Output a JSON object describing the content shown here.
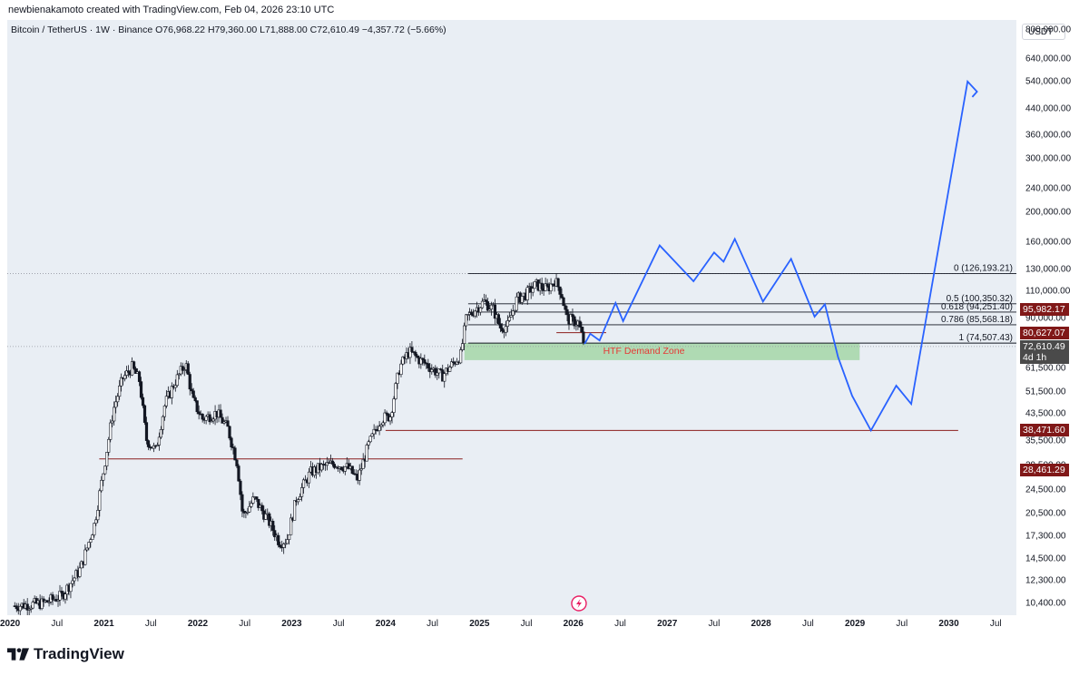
{
  "header": {
    "attribution": "newbienakamoto created with TradingView.com, Feb 04, 2026 23:10 UTC"
  },
  "legend": {
    "symbol": "Bitcoin / TetherUS · 1W · Binance",
    "open": "O76,968.22",
    "high": "H79,360.00",
    "low": "L71,888.00",
    "close": "C72,610.49",
    "change": "−4,357.72 (−5.66%)"
  },
  "axis": {
    "unit": "USDT"
  },
  "footer": {
    "brand": "TradingView"
  },
  "colors": {
    "plot_bg": "#e9eef4",
    "candle": "#131722",
    "projection": "#2962ff",
    "support_line": "#8b1e1e",
    "demand_zone": "#a5d6a7",
    "demand_zone_text": "#e53935",
    "price_tag_red": "#801818",
    "price_tag_dark": "#4a4a4a"
  },
  "chart_data": {
    "type": "candlestick",
    "symbol": "Bitcoin / TetherUS",
    "interval": "1W",
    "exchange": "Binance",
    "y_scale": "log",
    "ylim": [
      9500,
      860000
    ],
    "y_ticks": [
      "800,000.00",
      "640,000.00",
      "540,000.00",
      "440,000.00",
      "360,000.00",
      "300,000.00",
      "240,000.00",
      "200,000.00",
      "160,000.00",
      "130,000.00",
      "110,000.00",
      "90,000.00",
      "61,500.00",
      "51,500.00",
      "43,500.00",
      "35,500.00",
      "29,500.00",
      "24,500.00",
      "20,500.00",
      "17,300.00",
      "14,500.00",
      "12,300.00",
      "10,400.00"
    ],
    "x_ticks": [
      {
        "label": "2020",
        "year": 2020.0,
        "major": true
      },
      {
        "label": "Jul",
        "year": 2020.5
      },
      {
        "label": "2021",
        "year": 2021.0,
        "major": true
      },
      {
        "label": "Jul",
        "year": 2021.5
      },
      {
        "label": "2022",
        "year": 2022.0,
        "major": true
      },
      {
        "label": "Jul",
        "year": 2022.5
      },
      {
        "label": "2023",
        "year": 2023.0,
        "major": true
      },
      {
        "label": "Jul",
        "year": 2023.5
      },
      {
        "label": "2024",
        "year": 2024.0,
        "major": true
      },
      {
        "label": "Jul",
        "year": 2024.5
      },
      {
        "label": "2025",
        "year": 2025.0,
        "major": true
      },
      {
        "label": "Jul",
        "year": 2025.5
      },
      {
        "label": "2026",
        "year": 2026.0,
        "major": true
      },
      {
        "label": "Jul",
        "year": 2026.5
      },
      {
        "label": "2027",
        "year": 2027.0,
        "major": true
      },
      {
        "label": "Jul",
        "year": 2027.5
      },
      {
        "label": "2028",
        "year": 2028.0,
        "major": true
      },
      {
        "label": "Jul",
        "year": 2028.5
      },
      {
        "label": "2029",
        "year": 2029.0,
        "major": true
      },
      {
        "label": "Jul",
        "year": 2029.5
      },
      {
        "label": "2030",
        "year": 2030.0,
        "major": true
      },
      {
        "label": "Jul",
        "year": 2030.5
      }
    ],
    "price_path": [
      [
        2020.05,
        10200
      ],
      [
        2020.35,
        10400
      ],
      [
        2020.55,
        11000
      ],
      [
        2020.75,
        13500
      ],
      [
        2020.9,
        19000
      ],
      [
        2021.0,
        29000
      ],
      [
        2021.1,
        45000
      ],
      [
        2021.2,
        57000
      ],
      [
        2021.3,
        62000
      ],
      [
        2021.38,
        56000
      ],
      [
        2021.45,
        36000
      ],
      [
        2021.55,
        33000
      ],
      [
        2021.65,
        47000
      ],
      [
        2021.75,
        55000
      ],
      [
        2021.87,
        64000
      ],
      [
        2021.95,
        48000
      ],
      [
        2022.05,
        42000
      ],
      [
        2022.2,
        44000
      ],
      [
        2022.32,
        39000
      ],
      [
        2022.42,
        30000
      ],
      [
        2022.48,
        20000
      ],
      [
        2022.6,
        23000
      ],
      [
        2022.75,
        19500
      ],
      [
        2022.87,
        16500
      ],
      [
        2022.95,
        16800
      ],
      [
        2023.05,
        23000
      ],
      [
        2023.2,
        28000
      ],
      [
        2023.3,
        29000
      ],
      [
        2023.45,
        30000
      ],
      [
        2023.6,
        29000
      ],
      [
        2023.7,
        26500
      ],
      [
        2023.82,
        34500
      ],
      [
        2023.95,
        42000
      ],
      [
        2024.05,
        43000
      ],
      [
        2024.15,
        62000
      ],
      [
        2024.25,
        70000
      ],
      [
        2024.35,
        66000
      ],
      [
        2024.45,
        63000
      ],
      [
        2024.6,
        58000
      ],
      [
        2024.7,
        63000
      ],
      [
        2024.8,
        68000
      ],
      [
        2024.86,
        90000
      ],
      [
        2024.95,
        96000
      ],
      [
        2025.05,
        102000
      ],
      [
        2025.15,
        96000
      ],
      [
        2025.22,
        84000
      ],
      [
        2025.3,
        85000
      ],
      [
        2025.4,
        104000
      ],
      [
        2025.5,
        108000
      ],
      [
        2025.6,
        116000
      ],
      [
        2025.72,
        112000
      ],
      [
        2025.8,
        120000
      ],
      [
        2025.87,
        110000
      ],
      [
        2025.93,
        90000
      ],
      [
        2026.0,
        88000
      ],
      [
        2026.05,
        87000
      ],
      [
        2026.1,
        76968.22
      ],
      [
        2026.12,
        72610.49
      ]
    ],
    "last_candle": {
      "open": 76968.22,
      "high": 79360.0,
      "low": 71888.0,
      "close": 72610.49,
      "change": "−4,357.72 (−5.66%)"
    },
    "projection_path": [
      [
        2026.12,
        74000
      ],
      [
        2026.18,
        80000
      ],
      [
        2026.28,
        76000
      ],
      [
        2026.45,
        101000
      ],
      [
        2026.53,
        88000
      ],
      [
        2026.92,
        156000
      ],
      [
        2027.28,
        119000
      ],
      [
        2027.5,
        148000
      ],
      [
        2027.6,
        138000
      ],
      [
        2027.72,
        164000
      ],
      [
        2028.02,
        102000
      ],
      [
        2028.32,
        141000
      ],
      [
        2028.57,
        91000
      ],
      [
        2028.68,
        100000
      ],
      [
        2028.82,
        67000
      ],
      [
        2028.97,
        50000
      ],
      [
        2029.17,
        38471.6
      ],
      [
        2029.44,
        54000
      ],
      [
        2029.6,
        47000
      ],
      [
        2030.2,
        540000
      ],
      [
        2030.3,
        500000
      ],
      [
        2030.25,
        480000
      ]
    ],
    "fibonacci": [
      {
        "label": "0 (126,193.21)",
        "price": 126193.21
      },
      {
        "label": "0.5 (100,350.32)",
        "price": 100350.32
      },
      {
        "label": "0.618 (94,251.40)",
        "price": 94251.4
      },
      {
        "label": "0.786 (85,568.18)",
        "price": 85568.18
      },
      {
        "label": "1 (74,507.43)",
        "price": 74507.43
      }
    ],
    "fib_range": [
      2024.88,
      2030.72
    ],
    "horizontal_lines": [
      {
        "price": 38471.6,
        "from": 2024.0,
        "to": 2030.1
      },
      {
        "price": 31000,
        "from": 2020.95,
        "to": 2024.82
      },
      {
        "price": 80627.07,
        "from": 2025.82,
        "to": 2026.35
      }
    ],
    "demand_zone": {
      "label": "HTF Demand Zone",
      "top": 74507.43,
      "bottom": 65500,
      "from": 2024.84,
      "to": 2029.05
    },
    "price_tags": [
      {
        "label": "96,161.30",
        "price": 96161.3,
        "color": "#801818"
      },
      {
        "label": "95,982.17",
        "price": 95982.17,
        "color": "#801818"
      },
      {
        "label": "80,627.07",
        "price": 80627.07,
        "color": "#801818"
      },
      {
        "label": "72,610.49",
        "price": 72610.49,
        "color": "#4a4a4a",
        "sub": "4d 1h"
      },
      {
        "label": "38,471.60",
        "price": 38471.6,
        "color": "#801818"
      },
      {
        "label": "28,461.29",
        "price": 28461.29,
        "color": "#801818"
      }
    ]
  }
}
